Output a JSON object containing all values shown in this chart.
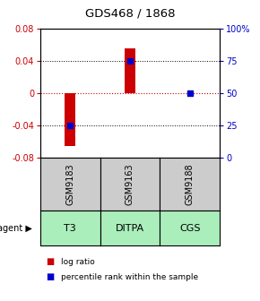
{
  "title": "GDS468 / 1868",
  "columns": [
    "GSM9183",
    "GSM9163",
    "GSM9188"
  ],
  "agents": [
    "T3",
    "DITPA",
    "CGS"
  ],
  "log_ratios": [
    -0.065,
    0.055,
    0.0
  ],
  "percentile_ranks": [
    25,
    75,
    50
  ],
  "ylim_left": [
    -0.08,
    0.08
  ],
  "ylim_right": [
    0,
    100
  ],
  "yticks_left": [
    -0.08,
    -0.04,
    0,
    0.04,
    0.08
  ],
  "yticks_right": [
    0,
    25,
    50,
    75,
    100
  ],
  "ytick_labels_right": [
    "0",
    "25",
    "50",
    "75",
    "100%"
  ],
  "bar_color": "#cc0000",
  "square_color": "#0000cc",
  "agent_bg_color": "#aaeebb",
  "gsm_bg_color": "#cccccc",
  "legend_bar_label": "log ratio",
  "legend_sq_label": "percentile rank within the sample",
  "figsize": [
    2.9,
    3.36
  ],
  "dpi": 100
}
